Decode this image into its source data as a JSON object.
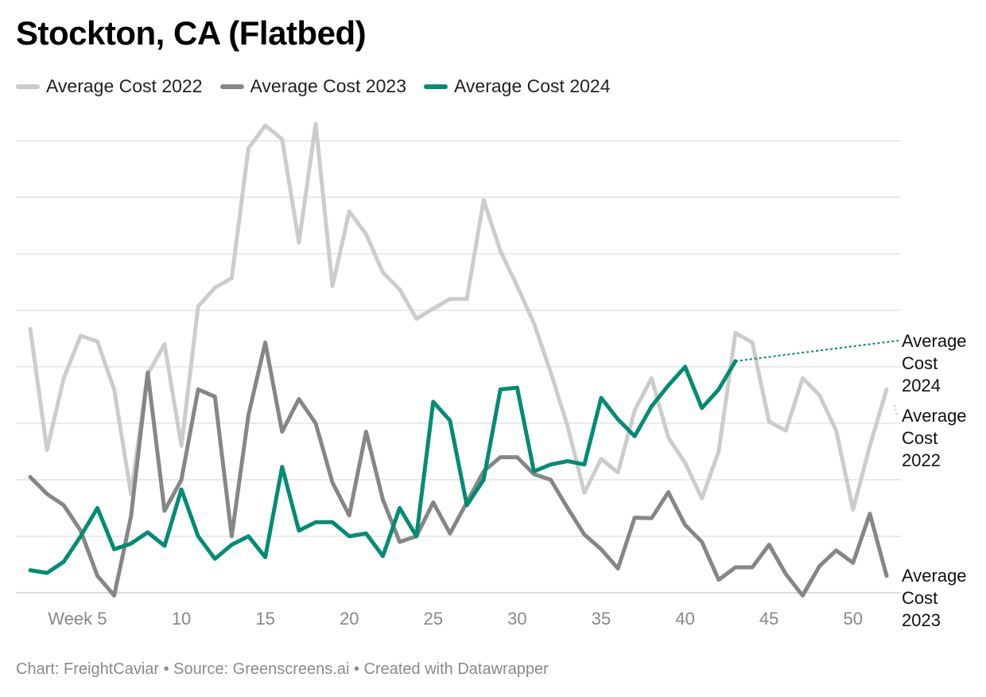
{
  "title": "Stockton, CA (Flatbed)",
  "footer": "Chart: FreightCaviar • Source: Greenscreens.ai • Created with Datawrapper",
  "colors": {
    "s2022": "#cccccc",
    "s2023": "#868686",
    "s2024": "#008c74",
    "grid": "#e4e4e4",
    "tick": "#888888"
  },
  "legend": [
    "Average Cost 2022",
    "Average Cost 2023",
    "Average Cost 2024"
  ],
  "chart_data": {
    "type": "line",
    "title": "Stockton, CA (Flatbed)",
    "xlabel": "",
    "ylabel": "",
    "x_ticks": [
      {
        "week": 5,
        "label": "Week 5"
      },
      {
        "week": 10,
        "label": "10"
      },
      {
        "week": 15,
        "label": "15"
      },
      {
        "week": 20,
        "label": "20"
      },
      {
        "week": 25,
        "label": "25"
      },
      {
        "week": 30,
        "label": "30"
      },
      {
        "week": 35,
        "label": "35"
      },
      {
        "week": 40,
        "label": "40"
      },
      {
        "week": 45,
        "label": "45"
      },
      {
        "week": 50,
        "label": "50"
      }
    ],
    "xlim": [
      1,
      52
    ],
    "ylim": [
      0,
      8
    ],
    "gridlines": [
      0,
      1,
      2,
      3,
      4,
      5,
      6,
      7,
      8
    ],
    "grid": true,
    "y_tick_labels_visible": false,
    "series": [
      {
        "name": "Average Cost 2022",
        "label": "Average Cost 2022",
        "label_lines": [
          "Average",
          "Cost",
          "2022"
        ],
        "values": [
          4.67,
          2.53,
          3.8,
          4.55,
          4.45,
          3.6,
          1.75,
          3.87,
          4.4,
          2.6,
          5.07,
          5.4,
          5.57,
          7.87,
          8.27,
          8.03,
          6.2,
          8.3,
          5.43,
          6.75,
          6.35,
          5.67,
          5.37,
          4.85,
          5.03,
          5.2,
          5.2,
          6.95,
          6.05,
          5.43,
          4.77,
          3.9,
          2.95,
          1.77,
          2.37,
          2.13,
          3.23,
          3.8,
          2.75,
          2.3,
          1.67,
          2.5,
          4.6,
          4.43,
          3.03,
          2.87,
          3.8,
          3.5,
          2.87,
          1.47,
          2.6,
          3.6
        ]
      },
      {
        "name": "Average Cost 2023",
        "label": "Average Cost 2023",
        "label_lines": [
          "Average",
          "Cost",
          "2023"
        ],
        "values": [
          2.05,
          1.75,
          1.55,
          1.1,
          0.3,
          -0.05,
          1.35,
          3.9,
          1.45,
          2.0,
          3.6,
          3.47,
          1.0,
          3.15,
          4.43,
          2.85,
          3.43,
          3.0,
          1.95,
          1.37,
          2.85,
          1.65,
          0.9,
          1.0,
          1.6,
          1.05,
          1.6,
          2.15,
          2.4,
          2.4,
          2.1,
          2.0,
          1.5,
          1.03,
          0.77,
          0.43,
          1.33,
          1.32,
          1.78,
          1.2,
          0.9,
          0.23,
          0.45,
          0.45,
          0.85,
          0.33,
          -0.05,
          0.47,
          0.75,
          0.53,
          1.4,
          0.3
        ]
      },
      {
        "name": "Average Cost 2024",
        "label": "Average Cost 2024",
        "label_lines": [
          "Average",
          "Cost",
          "2024"
        ],
        "values": [
          0.4,
          0.35,
          0.55,
          1.0,
          1.5,
          0.77,
          0.87,
          1.07,
          0.83,
          1.83,
          1.0,
          0.6,
          0.85,
          1.0,
          0.63,
          2.23,
          1.1,
          1.25,
          1.25,
          1.0,
          1.05,
          0.65,
          1.5,
          1.0,
          3.38,
          3.05,
          1.55,
          2.0,
          3.6,
          3.63,
          2.15,
          2.27,
          2.33,
          2.27,
          3.45,
          3.07,
          2.77,
          3.3,
          3.67,
          4.0,
          3.27,
          3.6,
          4.1
        ]
      }
    ]
  }
}
